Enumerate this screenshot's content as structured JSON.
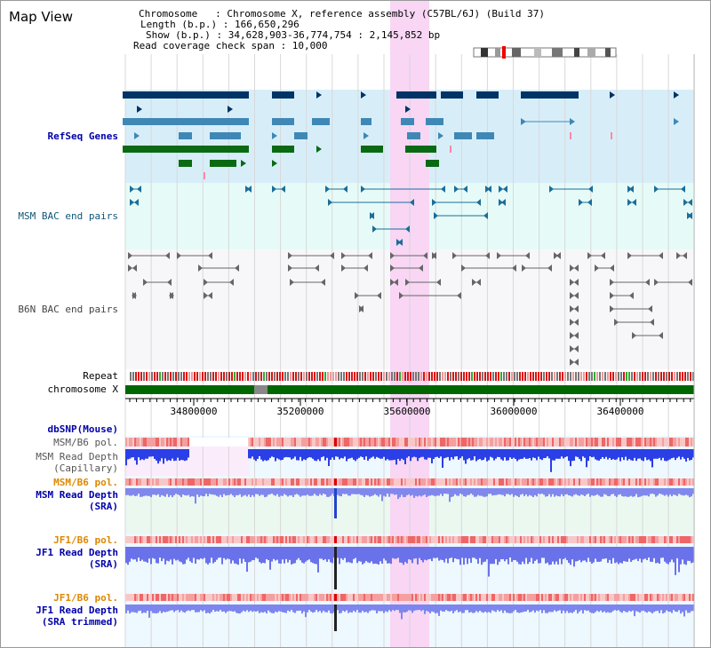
{
  "title": "Map View",
  "info": {
    "chromosome": "Chromosome   : Chromosome X, reference assembly (C57BL/6J) (Build 37)",
    "length": "Length (b.p.) : 166,650,296",
    "show": "Show (b.p.) : 34,628,903-36,774,754 : 2,145,852 bp",
    "span": "Read coverage check span : 10,000"
  },
  "tracks": {
    "refseq": "RefSeq Genes",
    "msm_bac": "MSM BAC end pairs",
    "b6n_bac": "B6N BAC end pairs",
    "repeat": "Repeat",
    "chromosome": "chromosome X",
    "dbsnp": "dbSNP(Mouse)",
    "msm_pol": "MSM/B6 pol.",
    "msm_cap": "MSM Read Depth\n(Capillary)",
    "msm_pol2": "MSM/B6 pol.",
    "msm_sra": "MSM Read Depth\n(SRA)",
    "jf1_pol": "JF1/B6 pol.",
    "jf1_sra": "JF1 Read Depth\n(SRA)",
    "jf1_pol2": "JF1/B6 pol.",
    "jf1_trim": "JF1 Read Depth\n(SRA trimmed)"
  },
  "axis": {
    "ticks": [
      "34800000",
      "35200000",
      "35600000",
      "36000000",
      "36400000"
    ]
  },
  "colors": {
    "refseq_bg": "#d7eef9",
    "bac_bg": "#e6fbf8",
    "highlight": "#f8d6f4",
    "navy": "#003366",
    "steel": "#3f88b5",
    "green": "#0a6a14",
    "readdepth": "#3355ee"
  }
}
